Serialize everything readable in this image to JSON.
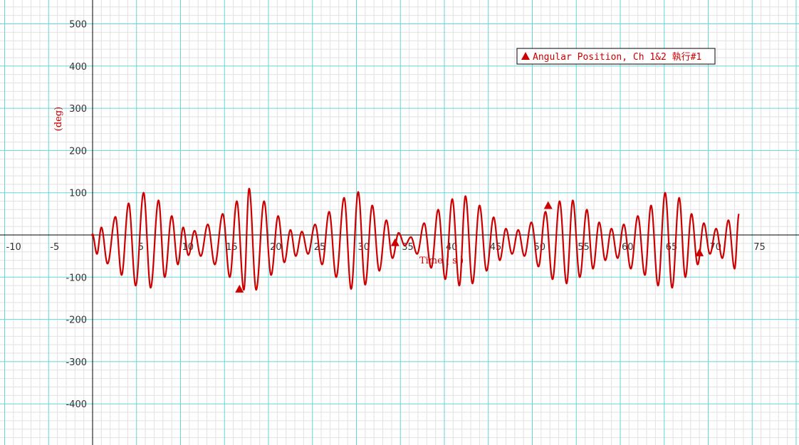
{
  "chart_data": {
    "type": "line",
    "title": "",
    "xlabel": "Time ( s )",
    "ylabel": "(deg)",
    "xlim": [
      -10,
      79
    ],
    "ylim": [
      -490,
      545
    ],
    "x_ticks": [
      -10,
      -5,
      5,
      10,
      15,
      20,
      25,
      30,
      35,
      40,
      45,
      50,
      55,
      60,
      65,
      70,
      75
    ],
    "y_ticks": [
      500,
      400,
      300,
      200,
      100,
      -100,
      -200,
      -300,
      -400
    ],
    "grid": true,
    "legend_position": "top-right",
    "sample_interval": 0.1,
    "series": [
      {
        "name": "Angular Position, Ch 1&2 執行#1",
        "color": "#cc0000",
        "marker": "triangle",
        "x_start": 0,
        "x_end": 73.5,
        "envelope": {
          "description": "oscillation peak values read from plot",
          "peaks": [
            {
              "x": 0.5,
              "y": -45
            },
            {
              "x": 1.0,
              "y": 18
            },
            {
              "x": 1.7,
              "y": -68
            },
            {
              "x": 2.6,
              "y": 43
            },
            {
              "x": 3.3,
              "y": -95
            },
            {
              "x": 4.1,
              "y": 75
            },
            {
              "x": 4.9,
              "y": -120
            },
            {
              "x": 5.8,
              "y": 100
            },
            {
              "x": 6.6,
              "y": -125
            },
            {
              "x": 7.5,
              "y": 82
            },
            {
              "x": 8.2,
              "y": -100
            },
            {
              "x": 9.0,
              "y": 45
            },
            {
              "x": 9.7,
              "y": -70
            },
            {
              "x": 10.3,
              "y": 18
            },
            {
              "x": 10.9,
              "y": -48
            },
            {
              "x": 11.6,
              "y": 10
            },
            {
              "x": 12.3,
              "y": -50
            },
            {
              "x": 13.1,
              "y": 25
            },
            {
              "x": 13.9,
              "y": -70
            },
            {
              "x": 14.8,
              "y": 50
            },
            {
              "x": 15.6,
              "y": -100
            },
            {
              "x": 16.4,
              "y": 80
            },
            {
              "x": 17.2,
              "y": -130
            },
            {
              "x": 17.8,
              "y": 110
            },
            {
              "x": 18.6,
              "y": -130
            },
            {
              "x": 19.5,
              "y": 80
            },
            {
              "x": 20.3,
              "y": -95
            },
            {
              "x": 21.1,
              "y": 45
            },
            {
              "x": 21.8,
              "y": -65
            },
            {
              "x": 22.5,
              "y": 12
            },
            {
              "x": 23.1,
              "y": -50
            },
            {
              "x": 23.8,
              "y": 8
            },
            {
              "x": 24.5,
              "y": -45
            },
            {
              "x": 25.3,
              "y": 25
            },
            {
              "x": 26.1,
              "y": -70
            },
            {
              "x": 26.9,
              "y": 55
            },
            {
              "x": 27.7,
              "y": -100
            },
            {
              "x": 28.6,
              "y": 88
            },
            {
              "x": 29.4,
              "y": -128
            },
            {
              "x": 30.2,
              "y": 102
            },
            {
              "x": 31.0,
              "y": -118
            },
            {
              "x": 31.8,
              "y": 70
            },
            {
              "x": 32.6,
              "y": -85
            },
            {
              "x": 33.4,
              "y": 35
            },
            {
              "x": 34.1,
              "y": -55
            },
            {
              "x": 34.8,
              "y": 5
            },
            {
              "x": 35.5,
              "y": -25
            },
            {
              "x": 36.2,
              "y": -5
            },
            {
              "x": 36.9,
              "y": -45
            },
            {
              "x": 37.7,
              "y": 28
            },
            {
              "x": 38.5,
              "y": -78
            },
            {
              "x": 39.3,
              "y": 60
            },
            {
              "x": 40.1,
              "y": -105
            },
            {
              "x": 40.9,
              "y": 85
            },
            {
              "x": 41.7,
              "y": -120
            },
            {
              "x": 42.4,
              "y": 92
            },
            {
              "x": 43.2,
              "y": -115
            },
            {
              "x": 44.0,
              "y": 70
            },
            {
              "x": 44.8,
              "y": -85
            },
            {
              "x": 45.6,
              "y": 42
            },
            {
              "x": 46.3,
              "y": -60
            },
            {
              "x": 47.0,
              "y": 15
            },
            {
              "x": 47.7,
              "y": -45
            },
            {
              "x": 48.4,
              "y": 12
            },
            {
              "x": 49.1,
              "y": -50
            },
            {
              "x": 49.9,
              "y": 30
            },
            {
              "x": 50.7,
              "y": -75
            },
            {
              "x": 51.5,
              "y": 55
            },
            {
              "x": 52.3,
              "y": -105
            },
            {
              "x": 53.1,
              "y": 80
            },
            {
              "x": 53.9,
              "y": -115
            },
            {
              "x": 54.6,
              "y": 82
            },
            {
              "x": 55.4,
              "y": -100
            },
            {
              "x": 56.2,
              "y": 60
            },
            {
              "x": 56.9,
              "y": -80
            },
            {
              "x": 57.6,
              "y": 30
            },
            {
              "x": 58.3,
              "y": -60
            },
            {
              "x": 59.0,
              "y": 15
            },
            {
              "x": 59.7,
              "y": -55
            },
            {
              "x": 60.4,
              "y": 25
            },
            {
              "x": 61.2,
              "y": -80
            },
            {
              "x": 62.0,
              "y": 45
            },
            {
              "x": 62.8,
              "y": -95
            },
            {
              "x": 63.5,
              "y": 70
            },
            {
              "x": 64.3,
              "y": -120
            },
            {
              "x": 65.1,
              "y": 100
            },
            {
              "x": 65.9,
              "y": -125
            },
            {
              "x": 66.7,
              "y": 88
            },
            {
              "x": 67.4,
              "y": -100
            },
            {
              "x": 68.1,
              "y": 50
            },
            {
              "x": 68.8,
              "y": -70
            },
            {
              "x": 69.5,
              "y": 28
            },
            {
              "x": 70.2,
              "y": -45
            },
            {
              "x": 70.9,
              "y": 15
            },
            {
              "x": 71.6,
              "y": -55
            },
            {
              "x": 72.3,
              "y": 35
            },
            {
              "x": 73.0,
              "y": -80
            },
            {
              "x": 73.5,
              "y": 50
            }
          ]
        },
        "triangle_markers": [
          {
            "x": 16.7,
            "y": -128
          },
          {
            "x": 34.4,
            "y": -18
          },
          {
            "x": 51.8,
            "y": 70
          },
          {
            "x": 69.0,
            "y": -42
          }
        ]
      }
    ]
  }
}
